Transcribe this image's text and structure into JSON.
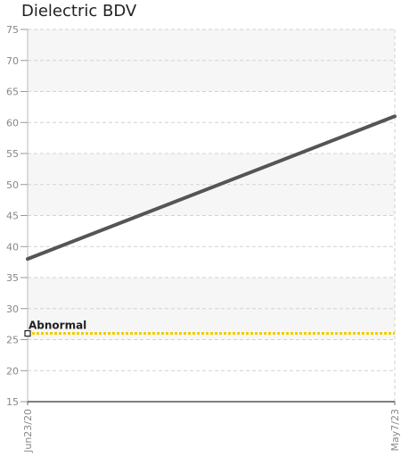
{
  "chart_data": {
    "type": "line",
    "title": "Dielectric BDV",
    "xlabel": "",
    "ylabel": "",
    "x": [
      "Jun23/20",
      "May7/23"
    ],
    "series": [
      {
        "values": [
          38,
          61
        ],
        "color": "#555555"
      }
    ],
    "threshold": {
      "label": "Abnormal",
      "value": 26,
      "color": "#f2cc00"
    },
    "ylim": [
      15,
      75
    ],
    "yticks": [
      15,
      20,
      25,
      30,
      35,
      40,
      45,
      50,
      55,
      60,
      65,
      70,
      75
    ],
    "grid": true
  }
}
